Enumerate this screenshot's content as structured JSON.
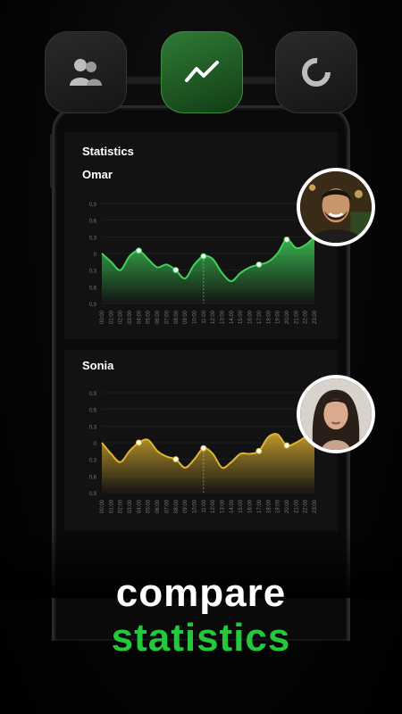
{
  "tabs": [
    {
      "name": "users-icon",
      "active": false
    },
    {
      "name": "trend-icon",
      "active": true
    },
    {
      "name": "donut-icon",
      "active": false
    }
  ],
  "statistics_title": "Statistics",
  "x_ticks": [
    "00:00",
    "01:00",
    "02:00",
    "03:00",
    "04:00",
    "05:00",
    "06:00",
    "07:00",
    "08:00",
    "09:00",
    "10:00",
    "11:00",
    "12:00",
    "13:00",
    "14:00",
    "15:00",
    "16:00",
    "17:00",
    "18:00",
    "19:00",
    "20:00",
    "21:00",
    "22:00",
    "23:00"
  ],
  "y_ticks": [
    "0,9",
    "0,6",
    "0,3",
    "0",
    "0,3",
    "0,6",
    "0,9"
  ],
  "chart_data": [
    {
      "type": "area",
      "series": [
        {
          "name": "Omar",
          "values": [
            0.0,
            -0.15,
            -0.3,
            -0.05,
            0.05,
            -0.1,
            -0.25,
            -0.2,
            -0.3,
            -0.45,
            -0.2,
            -0.05,
            -0.1,
            -0.35,
            -0.5,
            -0.35,
            -0.25,
            -0.2,
            -0.15,
            0.0,
            0.25,
            0.1,
            0.15,
            0.3
          ]
        }
      ],
      "ylim": [
        -0.9,
        0.9
      ],
      "color": "#3fd15a",
      "highlight_points": [
        4,
        8,
        11,
        17,
        20
      ]
    },
    {
      "type": "area",
      "series": [
        {
          "name": "Sonia",
          "values": [
            0.0,
            -0.2,
            -0.35,
            -0.15,
            0.0,
            0.05,
            -0.15,
            -0.25,
            -0.3,
            -0.45,
            -0.3,
            -0.1,
            -0.2,
            -0.45,
            -0.35,
            -0.2,
            -0.2,
            -0.15,
            0.1,
            0.15,
            -0.05,
            0.0,
            0.1,
            0.2
          ]
        }
      ],
      "ylim": [
        -0.9,
        0.9
      ],
      "color": "#e0b432",
      "highlight_points": [
        4,
        8,
        11,
        17,
        20
      ]
    }
  ],
  "headline": {
    "line1": "compare",
    "line2": "statistics"
  }
}
